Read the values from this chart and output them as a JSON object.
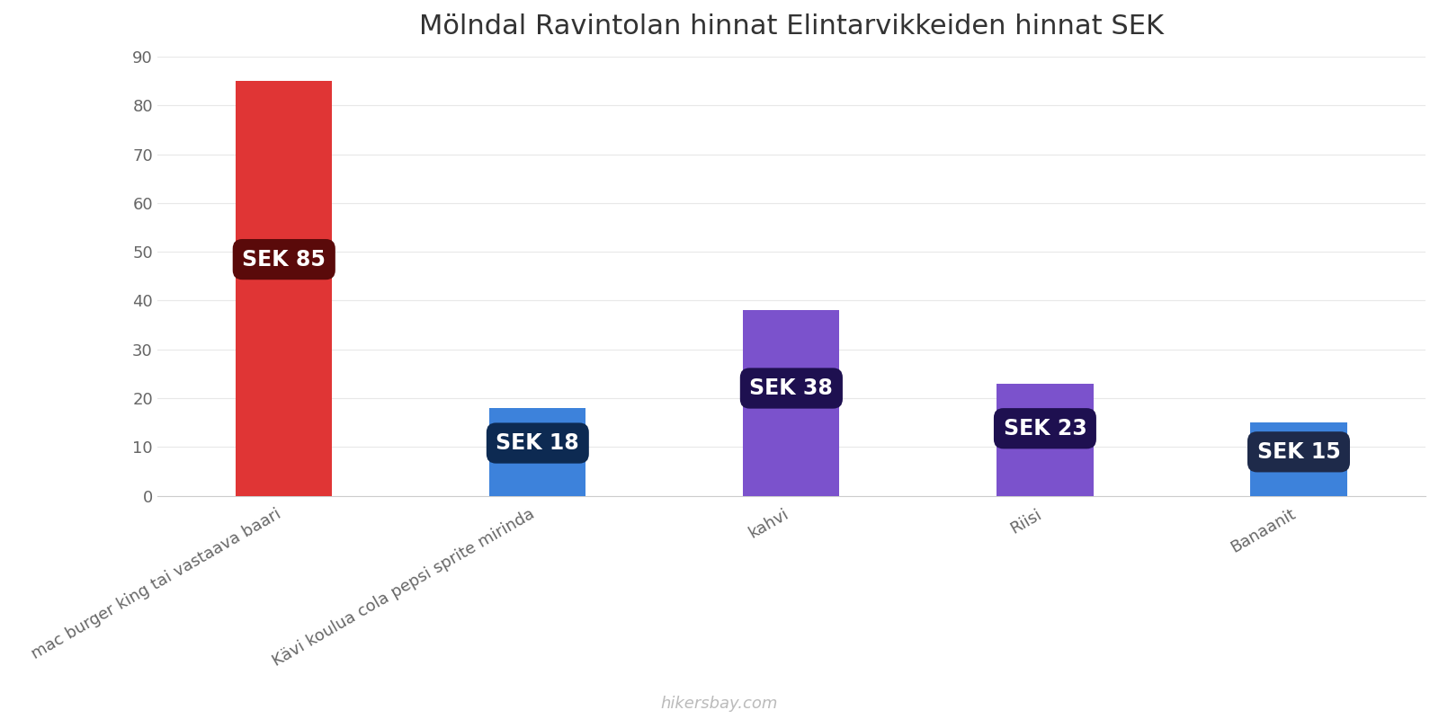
{
  "title": "Mölndal Ravintolan hinnat Elintarvikkeiden hinnat SEK",
  "categories": [
    "mac burger king tai vastaava baari",
    "Kävi koulua cola pepsi sprite mirinda",
    "kahvi",
    "Riisi",
    "Banaanit"
  ],
  "values": [
    85,
    18,
    38,
    23,
    15
  ],
  "bar_colors": [
    "#e03535",
    "#3d82db",
    "#7b52cc",
    "#7b52cc",
    "#3d82db"
  ],
  "label_bg_colors": [
    "#5a0a0a",
    "#0d2a52",
    "#1e1050",
    "#1e1050",
    "#1e2a4a"
  ],
  "labels": [
    "SEK 85",
    "SEK 18",
    "SEK 38",
    "SEK 23",
    "SEK 15"
  ],
  "ylim": [
    0,
    90
  ],
  "yticks": [
    0,
    10,
    20,
    30,
    40,
    50,
    60,
    70,
    80,
    90
  ],
  "watermark": "hikersbay.com",
  "title_fontsize": 22,
  "tick_label_fontsize": 13,
  "label_fontsize": 17,
  "background_color": "#ffffff",
  "grid_color": "#e8e8e8",
  "bar_width": 0.38
}
